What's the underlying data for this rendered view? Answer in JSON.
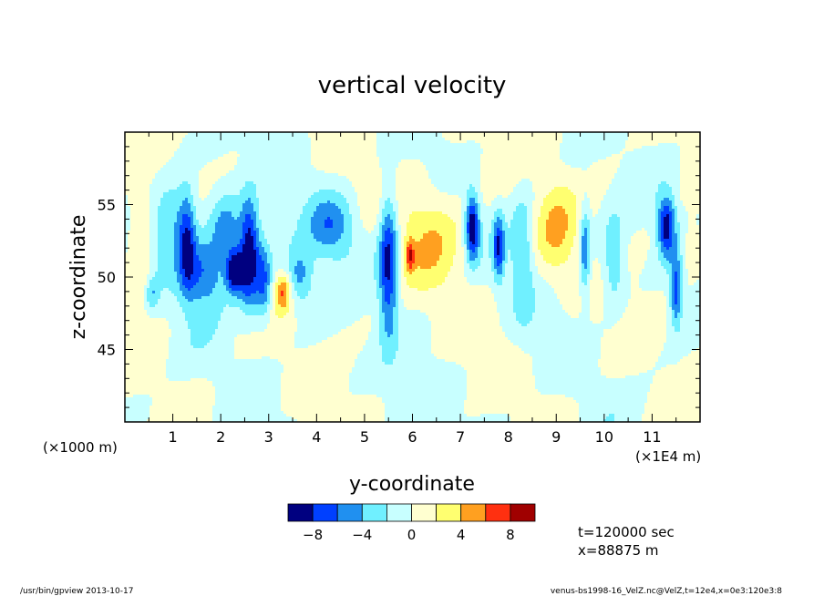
{
  "chart_data": {
    "type": "heatmap",
    "title": "vertical velocity",
    "xlabel": "y-coordinate",
    "ylabel": "z-coordinate",
    "x_unit_left": "(×1000 m)",
    "x_unit_right": "(×1E4 m)",
    "xlim": [
      0,
      12
    ],
    "ylim": [
      40,
      60
    ],
    "x_ticks": [
      1,
      2,
      3,
      4,
      5,
      6,
      7,
      8,
      9,
      10,
      11
    ],
    "x_tick_labels": [
      "1",
      "2",
      "3",
      "4",
      "5",
      "6",
      "7",
      "8",
      "9",
      "10",
      "11"
    ],
    "y_ticks": [
      45,
      50,
      55
    ],
    "y_tick_labels": [
      "45",
      "50",
      "55"
    ],
    "colorbar": {
      "levels": [
        -10,
        -8,
        -6,
        -4,
        -2,
        0,
        2,
        4,
        6,
        8,
        10
      ],
      "colors": [
        "#000080",
        "#0040ff",
        "#2090f0",
        "#70f0ff",
        "#c8ffff",
        "#ffffd0",
        "#ffff70",
        "#ffa020",
        "#ff3010",
        "#a00000"
      ],
      "tick_values": [
        -8,
        -4,
        0,
        4,
        8
      ],
      "tick_labels": [
        "−8",
        "−4",
        "0",
        "4",
        "8"
      ]
    },
    "features": [
      {
        "y": 0.3,
        "z": 53.5,
        "v": 3,
        "sy": 0.18,
        "sz": 2.2
      },
      {
        "y": 0.4,
        "z": 49.5,
        "v": 2.5,
        "sy": 0.15,
        "sz": 1.2
      },
      {
        "y": 0.55,
        "z": 48.9,
        "v": -4,
        "sy": 0.1,
        "sz": 0.8
      },
      {
        "y": 1.0,
        "z": 54.0,
        "v": -4,
        "sy": 0.3,
        "sz": 2.0
      },
      {
        "y": 1.3,
        "z": 52.5,
        "v": -6,
        "sy": 0.12,
        "sz": 2.5
      },
      {
        "y": 1.65,
        "z": 50.3,
        "v": -6.5,
        "sy": 0.35,
        "sz": 1.7
      },
      {
        "y": 2.1,
        "z": 53.5,
        "v": -5,
        "sy": 0.25,
        "sz": 1.6
      },
      {
        "y": 2.3,
        "z": 50.4,
        "v": -10,
        "sy": 0.13,
        "sz": 1.1
      },
      {
        "y": 2.6,
        "z": 51.5,
        "v": -10,
        "sy": 0.14,
        "sz": 2.6
      },
      {
        "y": 2.9,
        "z": 49.5,
        "v": -6,
        "sy": 0.12,
        "sz": 2.0
      },
      {
        "y": 3.3,
        "z": 49.0,
        "v": 6,
        "sy": 0.12,
        "sz": 0.9
      },
      {
        "y": 3.65,
        "z": 50.0,
        "v": -5,
        "sy": 0.2,
        "sz": 1.4
      },
      {
        "y": 4.3,
        "z": 53.5,
        "v": -5.5,
        "sy": 0.35,
        "sz": 1.6
      },
      {
        "y": 5.5,
        "z": 51.0,
        "v": -9,
        "sy": 0.14,
        "sz": 3.5
      },
      {
        "y": 5.95,
        "z": 51.5,
        "v": 6,
        "sy": 0.06,
        "sz": 0.7
      },
      {
        "y": 6.4,
        "z": 53.0,
        "v": 3.2,
        "sy": 0.5,
        "sz": 2.8
      },
      {
        "y": 7.25,
        "z": 53.5,
        "v": -10,
        "sy": 0.1,
        "sz": 1.6
      },
      {
        "y": 7.8,
        "z": 52.0,
        "v": -7,
        "sy": 0.08,
        "sz": 1.6
      },
      {
        "y": 8.3,
        "z": 51.5,
        "v": -4,
        "sy": 0.16,
        "sz": 3.0
      },
      {
        "y": 9.0,
        "z": 53.5,
        "v": 3.5,
        "sy": 0.3,
        "sz": 2.5
      },
      {
        "y": 9.6,
        "z": 52.0,
        "v": -6,
        "sy": 0.08,
        "sz": 2.2
      },
      {
        "y": 10.2,
        "z": 51.0,
        "v": -4,
        "sy": 0.16,
        "sz": 2.2
      },
      {
        "y": 11.3,
        "z": 53.5,
        "v": -9,
        "sy": 0.13,
        "sz": 1.5
      },
      {
        "y": 11.5,
        "z": 49.0,
        "v": -7,
        "sy": 0.09,
        "sz": 1.7
      },
      {
        "y": 11.85,
        "z": 52.0,
        "v": 3,
        "sy": 0.12,
        "sz": 1.2
      }
    ]
  },
  "info": {
    "time": "t=120000 sec",
    "xpos": "x=88875 m"
  },
  "footer": {
    "left": "/usr/bin/gpview   2013-10-17",
    "right": "venus-bs1998-16_VelZ.nc@VelZ,t=12e4,x=0e3:120e3:8"
  }
}
